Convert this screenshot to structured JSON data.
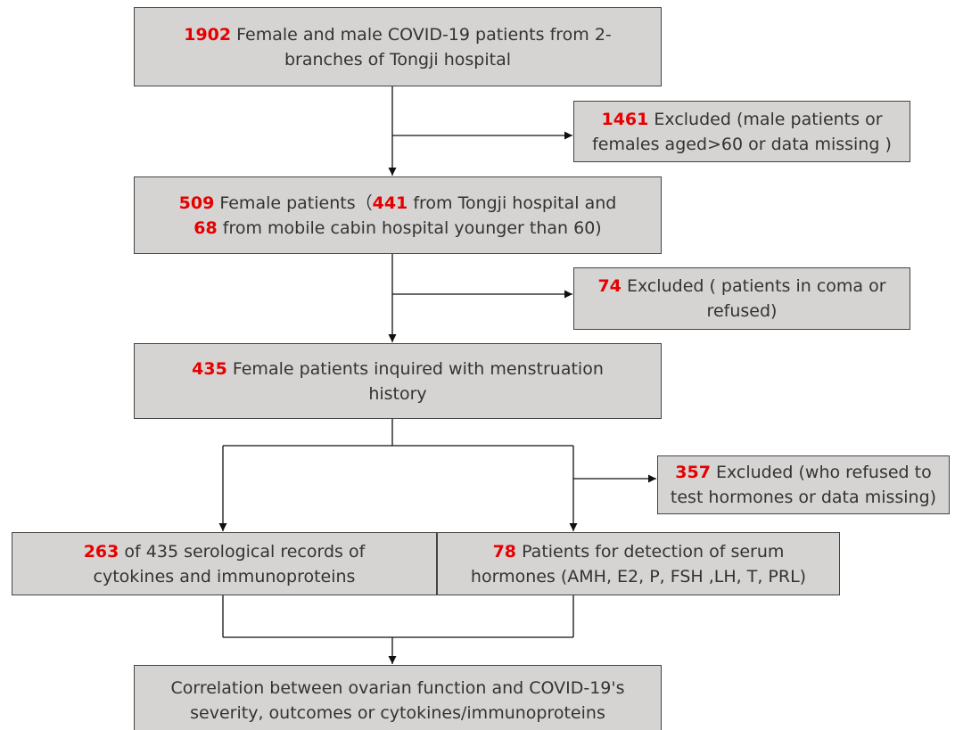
{
  "nodes": [
    {
      "lines": [
        [
          {
            "text": "1902",
            "emphasis": true
          },
          {
            "text": " Female and male COVID-19 patients from 2-"
          }
        ],
        [
          {
            "text": "branches of Tongji hospital"
          }
        ]
      ]
    },
    {
      "lines": [
        [
          {
            "text": "1461",
            "emphasis": true
          },
          {
            "text": " Excluded (male patients or"
          }
        ],
        [
          {
            "text": "females aged>60 or data missing )"
          }
        ]
      ]
    },
    {
      "lines": [
        [
          {
            "text": "509",
            "emphasis": true
          },
          {
            "text": " Female patients（"
          },
          {
            "text": "441",
            "emphasis": true
          },
          {
            "text": " from Tongji hospital and"
          }
        ],
        [
          {
            "text": "68",
            "emphasis": true
          },
          {
            "text": " from mobile cabin hospital younger than 60)"
          }
        ]
      ]
    },
    {
      "lines": [
        [
          {
            "text": "74",
            "emphasis": true
          },
          {
            "text": " Excluded ( patients in coma or"
          }
        ],
        [
          {
            "text": "refused)"
          }
        ]
      ]
    },
    {
      "lines": [
        [
          {
            "text": "435",
            "emphasis": true
          },
          {
            "text": " Female patients inquired with menstruation"
          }
        ],
        [
          {
            "text": "history"
          }
        ]
      ]
    },
    {
      "lines": [
        [
          {
            "text": "357",
            "emphasis": true
          },
          {
            "text": " Excluded (who refused to"
          }
        ],
        [
          {
            "text": "test hormones or data missing)"
          }
        ]
      ]
    },
    {
      "lines": [
        [
          {
            "text": "263",
            "emphasis": true
          },
          {
            "text": " of 435 serological records of"
          }
        ],
        [
          {
            "text": "cytokines and immunoproteins"
          }
        ]
      ]
    },
    {
      "lines": [
        [
          {
            "text": "78",
            "emphasis": true
          },
          {
            "text": " Patients for detection of serum"
          }
        ],
        [
          {
            "text": "hormones (AMH, E2, P, FSH ,LH, T, PRL)"
          }
        ]
      ]
    },
    {
      "lines": [
        [
          {
            "text": "Correlation between ovarian function and COVID-19's"
          }
        ],
        [
          {
            "text": "severity, outcomes or cytokines/immunoproteins"
          }
        ]
      ]
    }
  ]
}
